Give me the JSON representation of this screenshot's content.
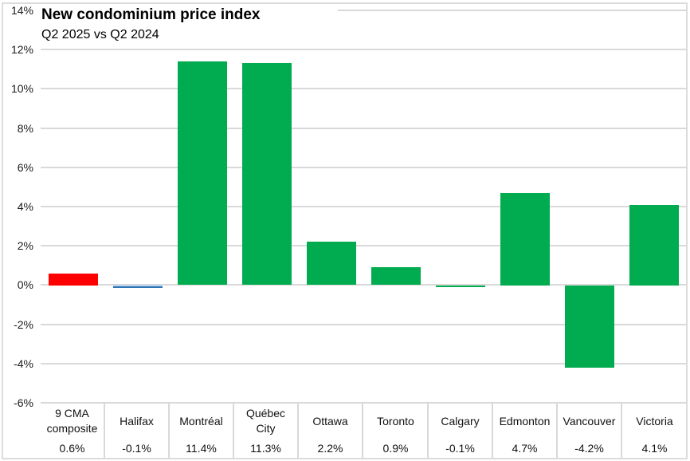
{
  "header": {
    "title": "New condominium price index",
    "subtitle": "Q2 2025 vs Q2 2024"
  },
  "colors": {
    "positive_green": "#00ac4f",
    "composite_red": "#ff0000",
    "halifax_fill": "#bdd7ee",
    "halifax_border": "#2e75b6",
    "gridline": "#d9d9d9",
    "text": "#111111"
  },
  "chart_data": {
    "type": "bar",
    "title": "New condominium price index",
    "subtitle": "Q2 2025 vs Q2 2024",
    "categories": [
      "9 CMA composite",
      "Halifax",
      "Montréal",
      "Québec City",
      "Ottawa",
      "Toronto",
      "Calgary",
      "Edmonton",
      "Vancouver",
      "Victoria"
    ],
    "values": [
      0.6,
      -0.1,
      11.4,
      11.3,
      2.2,
      0.9,
      -0.1,
      4.7,
      -4.2,
      4.1
    ],
    "value_labels": [
      "0.6%",
      "-0.1%",
      "11.4%",
      "11.3%",
      "2.2%",
      "0.9%",
      "-0.1%",
      "4.7%",
      "-4.2%",
      "4.1%"
    ],
    "bar_colors": [
      "#ff0000",
      "halifax-special",
      "#00ac4f",
      "#00ac4f",
      "#00ac4f",
      "#00ac4f",
      "#00ac4f",
      "#00ac4f",
      "#00ac4f",
      "#00ac4f"
    ],
    "ylabel": "",
    "xlabel": "",
    "ylim": [
      -6,
      14
    ],
    "ytick_step": 2,
    "ytick_labels": [
      "14%",
      "12%",
      "10%",
      "8%",
      "6%",
      "4%",
      "2%",
      "0%",
      "-2%",
      "-4%",
      "-6%"
    ],
    "ytick_suffix": "%",
    "grid": true,
    "legend_position": "none"
  }
}
